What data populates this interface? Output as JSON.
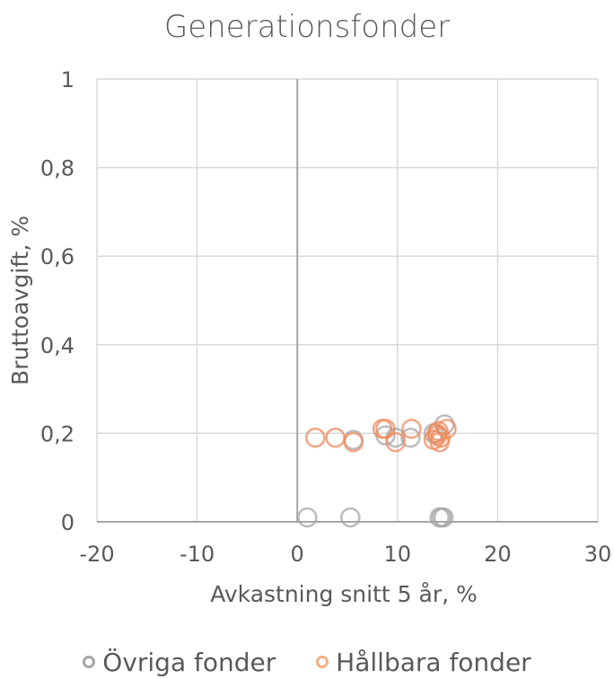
{
  "chart_data": {
    "type": "scatter",
    "title": "Generationsfonder",
    "xlabel": "Avkastning snitt 5 år, %",
    "ylabel": "Bruttoavgift, %",
    "xlim": [
      -20,
      30
    ],
    "ylim": [
      0,
      1
    ],
    "x_ticks": [
      "-20",
      "-10",
      "0",
      "10",
      "20",
      "30"
    ],
    "y_ticks": [
      "0",
      "0,2",
      "0,4",
      "0,6",
      "0,8",
      "1"
    ],
    "grid": true,
    "legend_position": "bottom",
    "series": [
      {
        "name": "Övriga fonder",
        "color": "#A6A6A6",
        "points": [
          {
            "x": 1.0,
            "y": 0.01
          },
          {
            "x": 5.3,
            "y": 0.01
          },
          {
            "x": 14.2,
            "y": 0.01
          },
          {
            "x": 14.4,
            "y": 0.01
          },
          {
            "x": 14.6,
            "y": 0.01
          },
          {
            "x": 5.6,
            "y": 0.185
          },
          {
            "x": 8.8,
            "y": 0.195
          },
          {
            "x": 9.8,
            "y": 0.19
          },
          {
            "x": 11.3,
            "y": 0.19
          },
          {
            "x": 14.7,
            "y": 0.22
          },
          {
            "x": 13.6,
            "y": 0.2
          }
        ]
      },
      {
        "name": "Hållbara fonder",
        "color": "#F4B183",
        "points": [
          {
            "x": 1.8,
            "y": 0.19
          },
          {
            "x": 3.8,
            "y": 0.19
          },
          {
            "x": 5.6,
            "y": 0.18
          },
          {
            "x": 8.5,
            "y": 0.21
          },
          {
            "x": 8.8,
            "y": 0.21
          },
          {
            "x": 9.8,
            "y": 0.18
          },
          {
            "x": 11.4,
            "y": 0.21
          },
          {
            "x": 13.6,
            "y": 0.185
          },
          {
            "x": 13.9,
            "y": 0.2
          },
          {
            "x": 14.0,
            "y": 0.195
          },
          {
            "x": 14.1,
            "y": 0.205
          },
          {
            "x": 14.2,
            "y": 0.18
          },
          {
            "x": 14.3,
            "y": 0.19
          },
          {
            "x": 14.9,
            "y": 0.21
          }
        ]
      }
    ]
  }
}
